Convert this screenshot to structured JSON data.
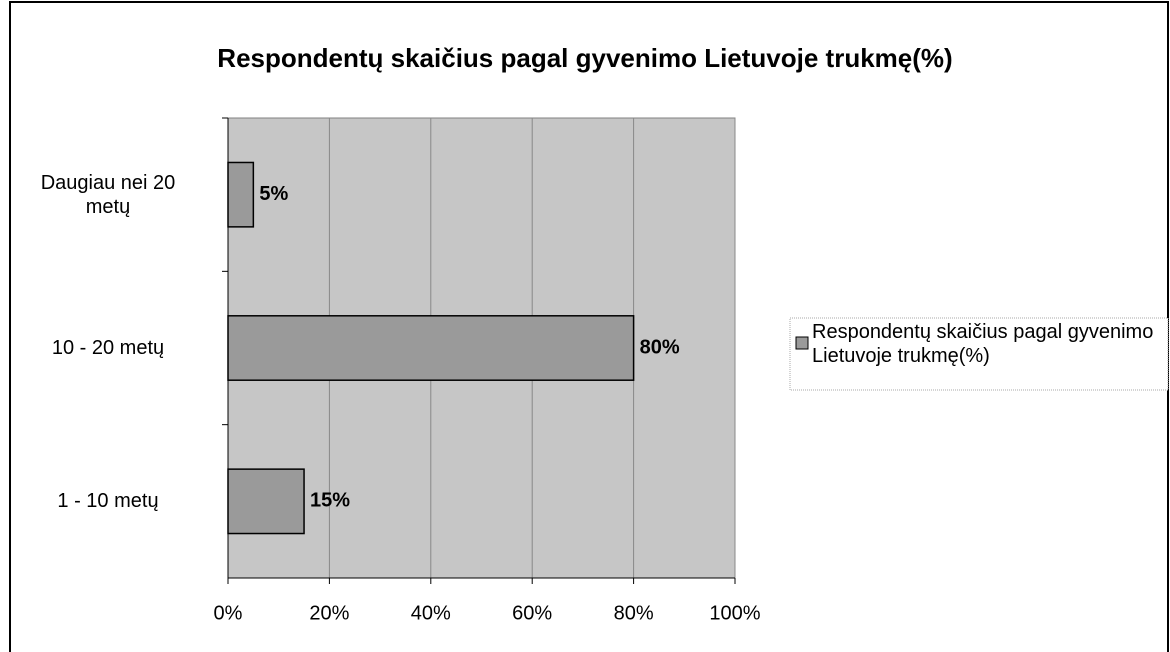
{
  "chart_data": {
    "type": "bar",
    "orientation": "horizontal",
    "title": "Respondentų skaičius pagal gyvenimo Lietuvoje trukmę(%)",
    "categories": [
      "Daugiau nei 20 metų",
      "10 - 20 metų",
      "1 - 10 metų"
    ],
    "series": [
      {
        "name": "Respondentų skaičius pagal gyvenimo Lietuvoje trukmę(%)",
        "color": "#9a9a9a",
        "values": [
          5,
          80,
          15
        ],
        "value_labels": [
          "5%",
          "80%",
          "15%"
        ]
      }
    ],
    "xlim": [
      0,
      100
    ],
    "xticks": [
      {
        "value": 0,
        "label": "0%"
      },
      {
        "value": 20,
        "label": "20%"
      },
      {
        "value": 40,
        "label": "40%"
      },
      {
        "value": 60,
        "label": "60%"
      },
      {
        "value": 80,
        "label": "80%"
      },
      {
        "value": 100,
        "label": "100%"
      }
    ],
    "grid": true,
    "legend": "right"
  }
}
